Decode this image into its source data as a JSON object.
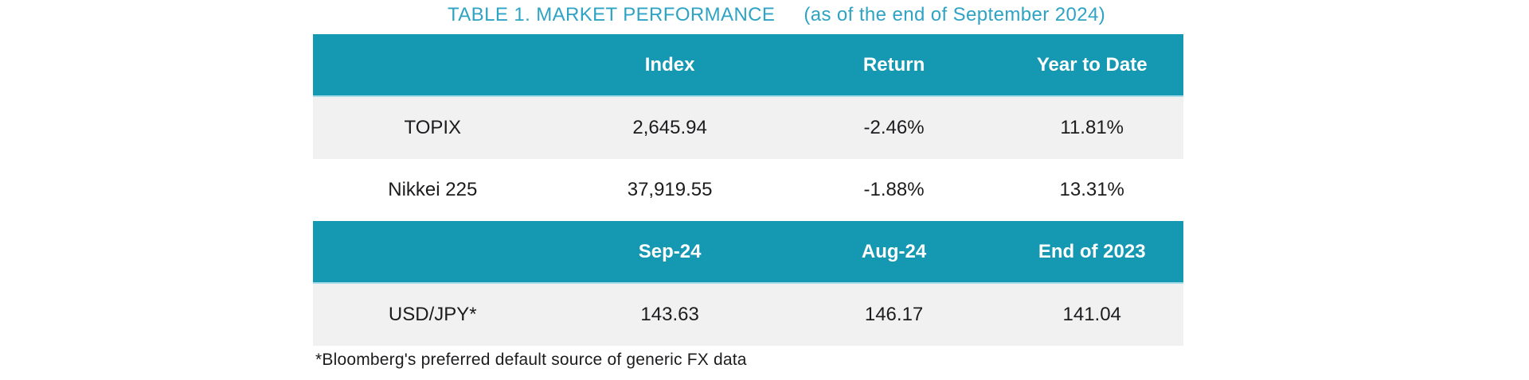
{
  "title": {
    "main": "TABLE 1. MARKET PERFORMANCE",
    "sub": "(as of the end of September 2024)"
  },
  "colors": {
    "header_teal": "#1598B2",
    "header_edge": "#A6DBE7",
    "title_teal": "#2EA3C3",
    "row_gray": "#F1F1F2",
    "row_white": "#FFFFFF",
    "text_dark": "#1C1C1E",
    "header_text": "#FFFFFF"
  },
  "index_table": {
    "headers": [
      "",
      "Index",
      "Return",
      "Year to Date"
    ],
    "rows": [
      {
        "label": "TOPIX",
        "values": [
          "2,645.94",
          "-2.46%",
          "11.81%"
        ]
      },
      {
        "label": "Nikkei 225",
        "values": [
          "37,919.55",
          "-1.88%",
          "13.31%"
        ]
      }
    ]
  },
  "fx_table": {
    "headers": [
      "",
      "Sep-24",
      "Aug-24",
      "End of 2023"
    ],
    "rows": [
      {
        "label": "USD/JPY*",
        "values": [
          "143.63",
          "146.17",
          "141.04"
        ]
      }
    ]
  },
  "footnote": "*Bloomberg's preferred default source of generic FX data",
  "chart_data": [
    {
      "type": "table",
      "title": "TABLE 1. MARKET PERFORMANCE (as of the end of September 2024)",
      "columns": [
        "",
        "Index",
        "Return",
        "Year to Date"
      ],
      "rows": [
        [
          "TOPIX",
          2645.94,
          "-2.46%",
          "11.81%"
        ],
        [
          "Nikkei 225",
          37919.55,
          "-1.88%",
          "13.31%"
        ]
      ]
    },
    {
      "type": "table",
      "columns": [
        "",
        "Sep-24",
        "Aug-24",
        "End of 2023"
      ],
      "rows": [
        [
          "USD/JPY*",
          143.63,
          146.17,
          141.04
        ]
      ]
    }
  ]
}
